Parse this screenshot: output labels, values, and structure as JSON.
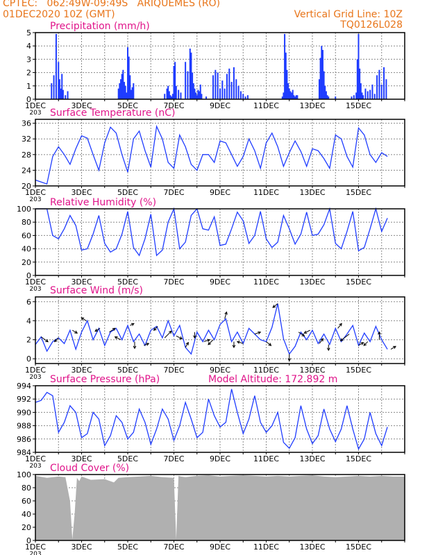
{
  "header": {
    "line1_left": "CPTEC:   062:49W-09:49S   ARIQUEMES (RO)",
    "line2_left": "01DEC2020 10Z (GMT)",
    "line2_right": "Vertical Grid Line: 10Z",
    "line3_right": "TQ0126L028",
    "text_color": "#e8751a",
    "title_color": "#e0148a"
  },
  "x_ticks": [
    "1DEC",
    "3DEC",
    "5DEC",
    "7DEC",
    "9DEC",
    "11DEC",
    "13DEC",
    "15DEC"
  ],
  "x_extra": "203",
  "chart_data": [
    {
      "id": "precip",
      "type": "bar",
      "title": "Precipitation (mm/h)",
      "ylim": [
        0,
        5
      ],
      "yticks": [
        0,
        1,
        2,
        3,
        4,
        5
      ],
      "color": "#1f3cff",
      "x": [
        0.7,
        0.8,
        0.9,
        1.0,
        1.05,
        1.1,
        1.15,
        1.2,
        1.3,
        1.4,
        3.6,
        3.65,
        3.7,
        3.75,
        3.8,
        3.85,
        3.9,
        3.95,
        4.0,
        4.05,
        4.1,
        4.15,
        4.2,
        4.25,
        5.6,
        5.7,
        5.75,
        5.8,
        5.85,
        5.9,
        5.95,
        6.0,
        6.05,
        6.1,
        6.2,
        6.3,
        6.5,
        6.6,
        6.7,
        6.75,
        6.8,
        6.85,
        6.9,
        6.95,
        7.0,
        7.05,
        7.1,
        7.15,
        7.2,
        7.4,
        7.7,
        7.8,
        7.9,
        8.0,
        8.1,
        8.2,
        8.3,
        8.4,
        8.5,
        8.6,
        8.7,
        8.8,
        8.9,
        9.0,
        9.1,
        9.2,
        10.7,
        10.75,
        10.8,
        10.85,
        10.9,
        10.95,
        11.0,
        11.05,
        11.1,
        11.15,
        11.2,
        11.25,
        11.3,
        11.35,
        12.3,
        12.35,
        12.4,
        12.45,
        12.5,
        12.55,
        12.6,
        12.65,
        12.7,
        13.0,
        13.7,
        13.8,
        13.9,
        13.95,
        14.0,
        14.05,
        14.1,
        14.15,
        14.2,
        14.3,
        14.4,
        14.5,
        14.6,
        14.7,
        14.8,
        14.9,
        15.0,
        15.1,
        15.2
      ],
      "values": [
        1.2,
        1.8,
        4.9,
        2.8,
        1.5,
        0.8,
        1.9,
        0.7,
        0.3,
        0.6,
        0.8,
        1.2,
        1.5,
        1.9,
        2.2,
        1.3,
        1.0,
        0.5,
        3.9,
        3.2,
        1.8,
        0.7,
        0.9,
        1.2,
        0.4,
        0.8,
        1.0,
        0.6,
        0.3,
        0.2,
        0.4,
        2.5,
        2.8,
        1.0,
        0.7,
        0.5,
        2.8,
        2.1,
        3.8,
        3.5,
        2.0,
        1.2,
        0.8,
        0.5,
        0.3,
        0.7,
        0.6,
        1.1,
        0.4,
        0.2,
        1.8,
        2.2,
        2.0,
        0.8,
        1.4,
        0.8,
        1.9,
        2.3,
        1.3,
        2.4,
        1.5,
        1.0,
        0.6,
        0.4,
        0.2,
        0.3,
        0.2,
        0.5,
        4.9,
        3.5,
        2.2,
        1.2,
        0.8,
        0.6,
        0.5,
        0.7,
        0.3,
        0.2,
        0.3,
        0.3,
        1.5,
        3.1,
        4.0,
        3.7,
        2.1,
        1.0,
        0.6,
        0.3,
        0.2,
        0.2,
        0.2,
        0.3,
        0.5,
        3.0,
        4.9,
        2.3,
        1.2,
        0.5,
        0.3,
        0.8,
        0.6,
        0.7,
        1.1,
        0.4,
        1.8,
        2.2,
        1.1,
        2.4,
        1.5
      ]
    },
    {
      "id": "temp",
      "type": "line",
      "title": "Surface Temperature (nC)",
      "ylim": [
        20,
        37
      ],
      "yticks": [
        20,
        24,
        28,
        32,
        36
      ],
      "color": "#1f3cff",
      "x": [
        0,
        0.25,
        0.5,
        0.75,
        1.0,
        1.25,
        1.5,
        1.75,
        2.0,
        2.25,
        2.5,
        2.75,
        3.0,
        3.25,
        3.5,
        3.75,
        4.0,
        4.25,
        4.5,
        4.75,
        5.0,
        5.25,
        5.5,
        5.75,
        6.0,
        6.25,
        6.5,
        6.75,
        7.0,
        7.25,
        7.5,
        7.75,
        8.0,
        8.25,
        8.5,
        8.75,
        9.0,
        9.25,
        9.5,
        9.75,
        10.0,
        10.25,
        10.5,
        10.75,
        11.0,
        11.25,
        11.5,
        11.75,
        12.0,
        12.25,
        12.5,
        12.75,
        13.0,
        13.25,
        13.5,
        13.75,
        14.0,
        14.25,
        14.5,
        14.75,
        15.0,
        15.25
      ],
      "values": [
        21.5,
        21,
        20.5,
        27.5,
        30,
        28,
        25.5,
        29.5,
        32.8,
        32.2,
        28,
        24,
        31,
        35,
        33.5,
        28,
        23.5,
        32,
        34,
        29,
        24.8,
        35.2,
        32,
        26,
        24.5,
        33,
        30,
        25.5,
        24,
        28,
        28,
        26,
        31.5,
        31,
        28,
        25,
        27.5,
        32,
        29,
        24.5,
        31,
        33.5,
        30,
        25,
        28.5,
        31.5,
        28.8,
        25,
        29.5,
        29,
        27,
        24.5,
        33,
        32,
        27.5,
        24.8,
        34.8,
        33,
        28,
        26,
        28.5,
        27.5
      ]
    },
    {
      "id": "rh",
      "type": "line",
      "title": "Relative Humidity (%)",
      "ylim": [
        0,
        100
      ],
      "yticks": [
        0,
        20,
        40,
        60,
        80,
        100
      ],
      "color": "#1f3cff",
      "x": [
        0,
        0.25,
        0.5,
        0.75,
        1.0,
        1.25,
        1.5,
        1.75,
        2.0,
        2.25,
        2.5,
        2.75,
        3.0,
        3.25,
        3.5,
        3.75,
        4.0,
        4.25,
        4.5,
        4.75,
        5.0,
        5.25,
        5.5,
        5.75,
        6.0,
        6.25,
        6.5,
        6.75,
        7.0,
        7.25,
        7.5,
        7.75,
        8.0,
        8.25,
        8.5,
        8.75,
        9.0,
        9.25,
        9.5,
        9.75,
        10.0,
        10.25,
        10.5,
        10.75,
        11.0,
        11.25,
        11.5,
        11.75,
        12.0,
        12.25,
        12.5,
        12.75,
        13.0,
        13.25,
        13.5,
        13.75,
        14.0,
        14.25,
        14.5,
        14.75,
        15.0,
        15.25
      ],
      "values": [
        100,
        100,
        100,
        60,
        55,
        70,
        90,
        75,
        38,
        40,
        62,
        90,
        48,
        35,
        40,
        62,
        96,
        42,
        30,
        55,
        92,
        30,
        38,
        80,
        100,
        40,
        50,
        90,
        100,
        70,
        68,
        88,
        45,
        47,
        70,
        95,
        82,
        48,
        60,
        96,
        55,
        42,
        50,
        90,
        70,
        47,
        62,
        95,
        60,
        62,
        76,
        100,
        48,
        40,
        66,
        96,
        37,
        42,
        70,
        100,
        66,
        86
      ]
    },
    {
      "id": "wind",
      "type": "line",
      "title": "Surface Wind (m/s)",
      "ylim": [
        -0.5,
        6.5
      ],
      "yticks": [
        0,
        2,
        4,
        6
      ],
      "color": "#1f3cff",
      "x": [
        0,
        0.25,
        0.5,
        0.75,
        1.0,
        1.25,
        1.5,
        1.75,
        2.0,
        2.25,
        2.5,
        2.75,
        3.0,
        3.25,
        3.5,
        3.75,
        4.0,
        4.25,
        4.5,
        4.75,
        5.0,
        5.25,
        5.5,
        5.75,
        6.0,
        6.25,
        6.5,
        6.75,
        7.0,
        7.25,
        7.5,
        7.75,
        8.0,
        8.25,
        8.5,
        8.75,
        9.0,
        9.25,
        9.5,
        9.75,
        10.0,
        10.25,
        10.5,
        10.75,
        11.0,
        11.25,
        11.5,
        11.75,
        12.0,
        12.25,
        12.5,
        12.75,
        13.0,
        13.25,
        13.5,
        13.75,
        14.0,
        14.25,
        14.5,
        14.75,
        15.0,
        15.25
      ],
      "values": [
        1.5,
        2.3,
        0.8,
        1.8,
        2.2,
        1.6,
        3.0,
        1.0,
        2.8,
        4.0,
        2.0,
        3.2,
        1.4,
        2.8,
        3.2,
        2.0,
        3.5,
        1.8,
        2.6,
        1.4,
        3.0,
        3.4,
        2.2,
        4.0,
        2.4,
        3.5,
        1.2,
        0.5,
        2.8,
        1.8,
        3.0,
        2.0,
        3.6,
        4.2,
        1.8,
        2.8,
        1.6,
        3.2,
        2.6,
        2.0,
        1.8,
        3.3,
        5.8,
        2.1,
        0.5,
        1.3,
        2.8,
        2.0,
        3.0,
        1.6,
        2.6,
        1.5,
        3.2,
        1.8,
        2.6,
        3.5,
        1.4,
        2.7,
        1.8,
        3.4,
        2.0,
        1.0
      ],
      "arrows": [
        {
          "x": 0.25,
          "u": 0.7,
          "v": -0.5
        },
        {
          "x": 1.0,
          "u": -0.4,
          "v": -0.4
        },
        {
          "x": 1.6,
          "u": 0.5,
          "v": -0.3
        },
        {
          "x": 2.2,
          "u": -0.5,
          "v": 0.3
        },
        {
          "x": 2.8,
          "u": -0.5,
          "v": -0.3
        },
        {
          "x": 3.2,
          "u": 0.6,
          "v": 0.4
        },
        {
          "x": 3.7,
          "u": -0.6,
          "v": 0.3
        },
        {
          "x": 4.1,
          "u": 0.4,
          "v": 0.2
        },
        {
          "x": 4.3,
          "u": 0.0,
          "v": -0.7
        },
        {
          "x": 4.7,
          "u": 0.5,
          "v": 0.2
        },
        {
          "x": 5.3,
          "u": -0.4,
          "v": -0.4
        },
        {
          "x": 5.6,
          "u": 0.7,
          "v": 0.7
        },
        {
          "x": 6.1,
          "u": 0.6,
          "v": -0.3
        },
        {
          "x": 6.5,
          "u": 0.3,
          "v": 0.5
        },
        {
          "x": 6.9,
          "u": 0.0,
          "v": -0.6
        },
        {
          "x": 7.3,
          "u": 0.6,
          "v": 0.2
        },
        {
          "x": 7.7,
          "u": -0.5,
          "v": -0.5
        },
        {
          "x": 8.2,
          "u": 0.2,
          "v": 0.7
        },
        {
          "x": 8.6,
          "u": 0.0,
          "v": -0.6
        },
        {
          "x": 9.0,
          "u": -0.6,
          "v": 0.2
        },
        {
          "x": 9.5,
          "u": 0.6,
          "v": 0.2
        },
        {
          "x": 10.0,
          "u": 0.5,
          "v": -0.4
        },
        {
          "x": 10.5,
          "u": -0.5,
          "v": -0.4
        },
        {
          "x": 11.0,
          "u": 0.0,
          "v": -0.7
        },
        {
          "x": 11.4,
          "u": 0.6,
          "v": -0.4
        },
        {
          "x": 11.9,
          "u": -0.6,
          "v": -0.3
        },
        {
          "x": 12.3,
          "u": 0.4,
          "v": 0.5
        },
        {
          "x": 12.7,
          "u": 0.0,
          "v": -0.6
        },
        {
          "x": 13.1,
          "u": 0.4,
          "v": 0.5
        },
        {
          "x": 13.6,
          "u": -0.9,
          "v": -0.7
        },
        {
          "x": 14.0,
          "u": 0.5,
          "v": 0.3
        },
        {
          "x": 14.4,
          "u": -0.4,
          "v": -0.4
        },
        {
          "x": 14.9,
          "u": 0.0,
          "v": 0.8
        },
        {
          "x": 15.4,
          "u": 0.5,
          "v": 0.3
        }
      ]
    },
    {
      "id": "pres",
      "type": "line",
      "title": "Surface Pressure (hPa)",
      "annotation": "Model Altitude: 172.892  m",
      "ylim": [
        984,
        994
      ],
      "yticks": [
        984,
        986,
        988,
        990,
        992,
        994
      ],
      "color": "#1f3cff",
      "x": [
        0,
        0.25,
        0.5,
        0.75,
        1.0,
        1.25,
        1.5,
        1.75,
        2.0,
        2.25,
        2.5,
        2.75,
        3.0,
        3.25,
        3.5,
        3.75,
        4.0,
        4.25,
        4.5,
        4.75,
        5.0,
        5.25,
        5.5,
        5.75,
        6.0,
        6.25,
        6.5,
        6.75,
        7.0,
        7.25,
        7.5,
        7.75,
        8.0,
        8.25,
        8.5,
        8.75,
        9.0,
        9.25,
        9.5,
        9.75,
        10.0,
        10.25,
        10.5,
        10.75,
        11.0,
        11.25,
        11.5,
        11.75,
        12.0,
        12.25,
        12.5,
        12.75,
        13.0,
        13.25,
        13.5,
        13.75,
        14.0,
        14.25,
        14.5,
        14.75,
        15.0,
        15.25
      ],
      "values": [
        991.5,
        991.8,
        993,
        992.5,
        987,
        988.5,
        991,
        990,
        986.2,
        986.8,
        990,
        989,
        985,
        986.5,
        989.5,
        988.5,
        986,
        987,
        990.5,
        988.5,
        985.2,
        987.5,
        990.5,
        989,
        985.8,
        988,
        991.5,
        989,
        986.2,
        987,
        992,
        989.5,
        987.8,
        988.5,
        993.5,
        990,
        986.8,
        989,
        992.5,
        988.5,
        987,
        988,
        990,
        985.5,
        984.6,
        986.2,
        991,
        987.5,
        985.3,
        986.5,
        990.5,
        987.5,
        985.6,
        987.5,
        991,
        987.5,
        984.5,
        986,
        990,
        986.8,
        985,
        987.8
      ]
    },
    {
      "id": "cloud",
      "type": "area",
      "title": "Cloud Cover (%)",
      "ylim": [
        0,
        100
      ],
      "yticks": [
        0,
        20,
        40,
        60,
        80,
        100
      ],
      "color": "#b0b0b0",
      "x": [
        0,
        0.5,
        1.0,
        1.3,
        1.5,
        1.6,
        1.7,
        1.8,
        1.9,
        2.0,
        2.4,
        3.0,
        3.4,
        3.6,
        4.0,
        4.5,
        5.0,
        5.5,
        6.0,
        6.1,
        6.2,
        6.3,
        6.5,
        7.0,
        7.5,
        8.0,
        8.5,
        9.0,
        9.5,
        10.0,
        10.5,
        11.0,
        11.5,
        12.0,
        12.5,
        13.0,
        13.5,
        14.0,
        14.5,
        15.0,
        15.5
      ],
      "values": [
        98,
        95,
        97,
        96,
        60,
        2,
        40,
        95,
        90,
        97,
        92,
        93,
        88,
        95,
        96,
        97,
        98,
        96,
        95,
        2,
        98,
        97,
        96,
        98,
        99,
        97,
        98,
        99,
        98,
        97,
        98,
        97,
        98,
        99,
        97,
        96,
        97,
        98,
        97,
        98,
        97
      ]
    }
  ]
}
